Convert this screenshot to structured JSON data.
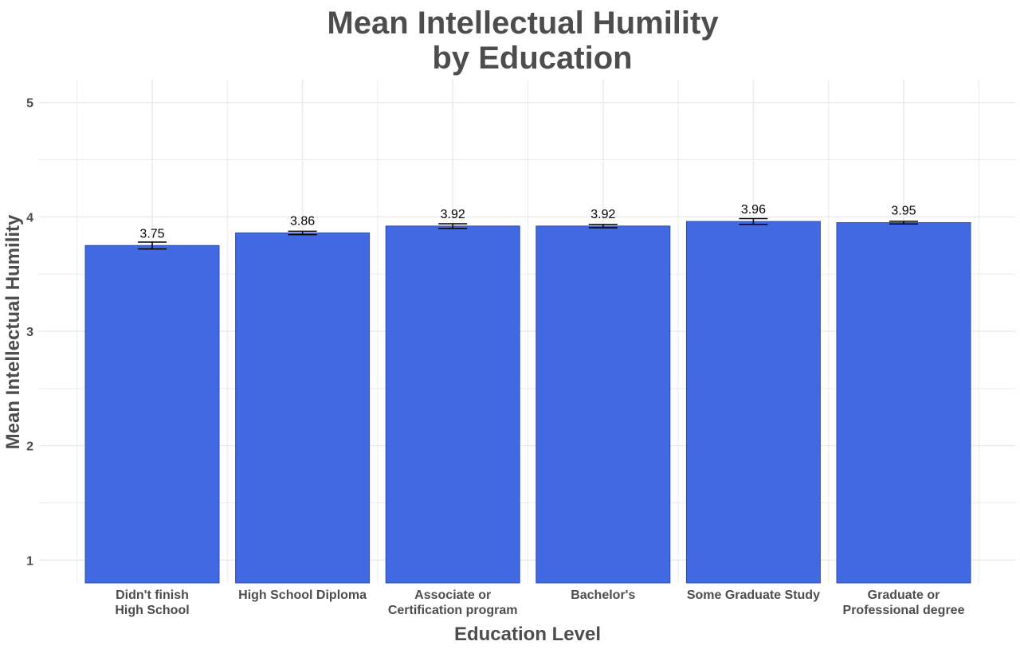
{
  "chart_data": {
    "type": "bar",
    "title_lines": [
      "Mean Intellectual Humility",
      "by Education"
    ],
    "xlabel": "Education Level",
    "ylabel": "Mean Intellectual Humility",
    "categories": [
      [
        "Didn't finish",
        "High School"
      ],
      [
        "High School Diploma"
      ],
      [
        "Associate or",
        "Certification program"
      ],
      [
        "Bachelor's"
      ],
      [
        "Some Graduate Study"
      ],
      [
        "Graduate or",
        "Professional degree"
      ]
    ],
    "values": [
      3.75,
      3.86,
      3.92,
      3.92,
      3.96,
      3.95
    ],
    "value_labels": [
      "3.75",
      "3.86",
      "3.92",
      "3.92",
      "3.96",
      "3.95"
    ],
    "error_halfwidths": [
      0.03,
      0.015,
      0.02,
      0.015,
      0.025,
      0.012
    ],
    "y_ticks": [
      1,
      2,
      3,
      4,
      5
    ],
    "y_tick_labels": [
      "1",
      "2",
      "3",
      "4",
      "5"
    ],
    "ylim": [
      0.8,
      5.2
    ],
    "grid": true,
    "legend": "none",
    "colors": {
      "bar_fill": "#4169e1",
      "bar_stroke": "#2e4fa8",
      "grid": "#ebebeb",
      "text": "#4d4d4d",
      "error_bar": "#000000"
    }
  }
}
